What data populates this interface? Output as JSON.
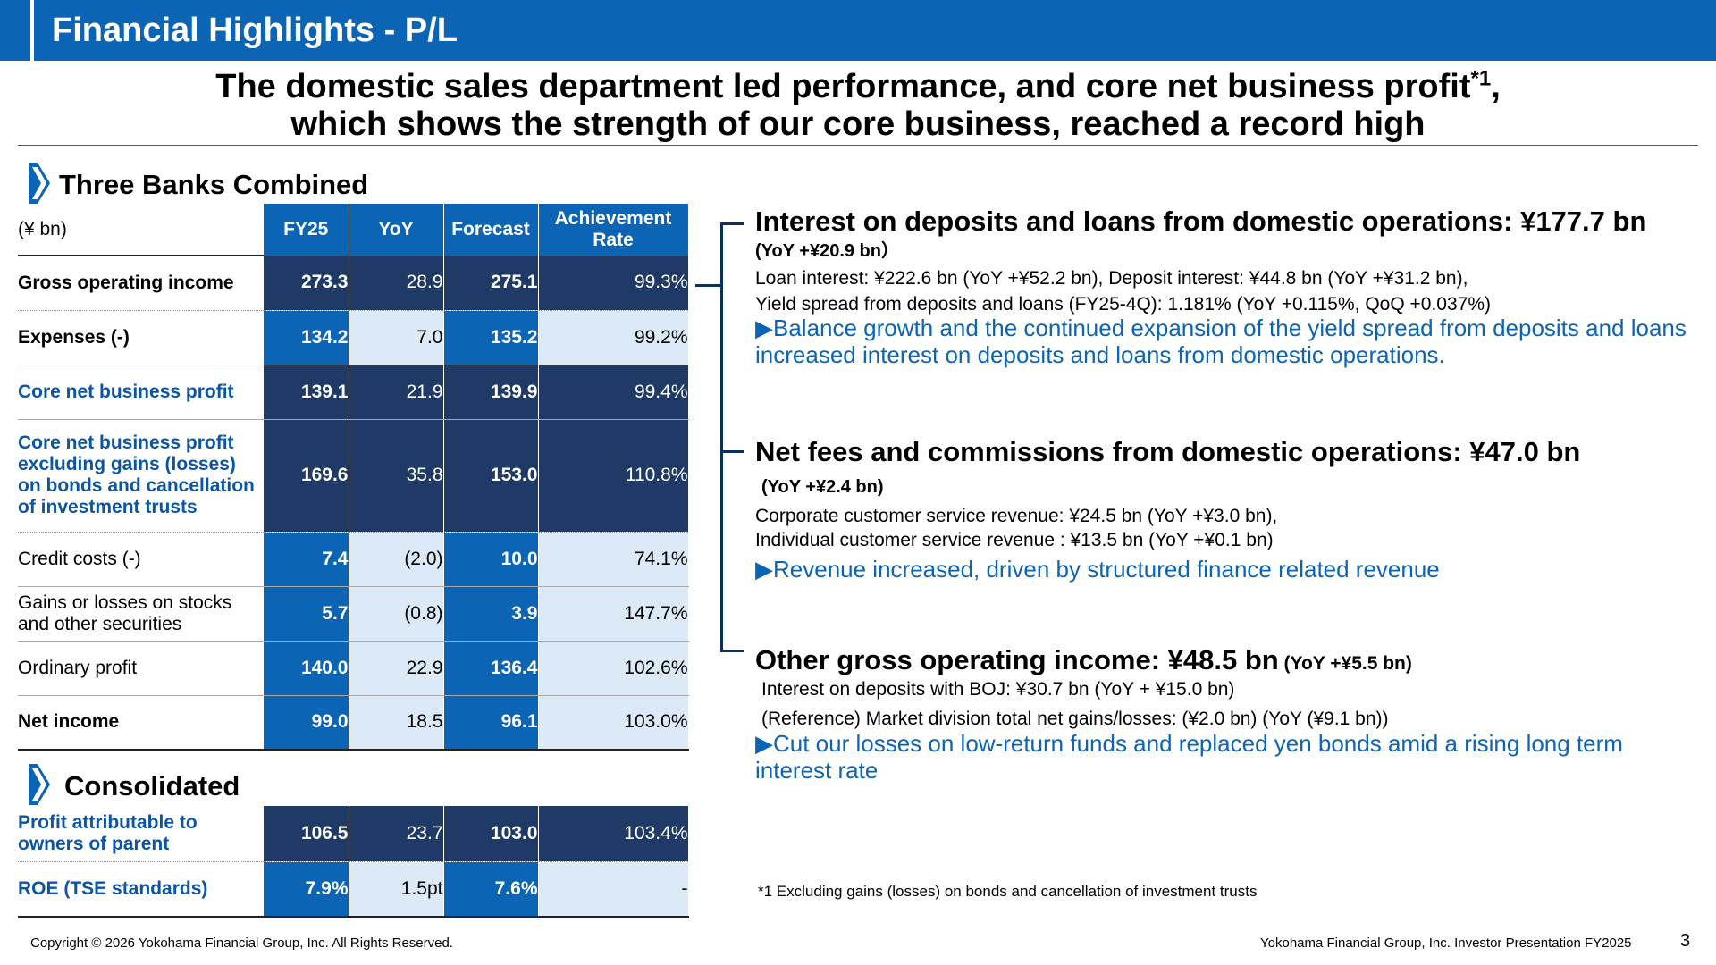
{
  "header": {
    "title": "Financial Highlights - P/L"
  },
  "headline": {
    "line1": "The domestic sales department led performance, and core net business profit",
    "line1_sup": "*1",
    "line1_end": ",",
    "line2": "which shows the strength of our core business, reached a record high"
  },
  "three_banks": {
    "title": "Three Banks Combined",
    "unit": "(¥ bn)",
    "columns": [
      "FY25",
      "YoY",
      "Forecast",
      "Achievement Rate"
    ],
    "rows": [
      {
        "label": "Gross operating income",
        "fy25": "273.3",
        "yoy": "28.9",
        "forecast": "275.1",
        "rate": "99.3%"
      },
      {
        "label": "Expenses (-)",
        "fy25": "134.2",
        "yoy": "7.0",
        "forecast": "135.2",
        "rate": "99.2%"
      },
      {
        "label": "Core net business profit",
        "fy25": "139.1",
        "yoy": "21.9",
        "forecast": "139.9",
        "rate": "99.4%"
      },
      {
        "label": "Core net business profit excluding gains (losses) on bonds and cancellation of investment trusts",
        "fy25": "169.6",
        "yoy": "35.8",
        "forecast": "153.0",
        "rate": "110.8%"
      },
      {
        "label": "Credit costs (-)",
        "fy25": "7.4",
        "yoy": "(2.0)",
        "forecast": "10.0",
        "rate": "74.1%"
      },
      {
        "label": "Gains or losses on stocks and other securities",
        "fy25": "5.7",
        "yoy": "(0.8)",
        "forecast": "3.9",
        "rate": "147.7%"
      },
      {
        "label": "Ordinary profit",
        "fy25": "140.0",
        "yoy": "22.9",
        "forecast": "136.4",
        "rate": "102.6%"
      },
      {
        "label": "Net income",
        "fy25": "99.0",
        "yoy": "18.5",
        "forecast": "96.1",
        "rate": "103.0%"
      }
    ]
  },
  "consolidated": {
    "title": "Consolidated",
    "rows": [
      {
        "label": "Profit attributable to owners of parent",
        "fy25": "106.5",
        "yoy": "23.7",
        "forecast": "103.0",
        "rate": "103.4%"
      },
      {
        "label": "ROE (TSE standards)",
        "fy25": "7.9%",
        "yoy": "1.5pt",
        "forecast": "7.6%",
        "rate": "-"
      }
    ]
  },
  "right": {
    "s1": {
      "heading": "Interest on deposits and loans from domestic operations: ¥177.7 bn",
      "sub": "(YoY +¥20.9 bn）",
      "body1": "Loan interest: ¥222.6 bn (YoY +¥52.2 bn), Deposit interest: ¥44.8 bn (YoY +¥31.2 bn),",
      "body2": "Yield spread from deposits and loans (FY25-4Q): 1.181% (YoY +0.115%, QoQ +0.037%)",
      "highlight": "▶Balance growth and the continued expansion of the yield spread from deposits and loans increased interest on deposits and loans from domestic operations."
    },
    "s2": {
      "heading": "Net fees and commissions from domestic operations: ¥47.0 bn",
      "sub": "(YoY +¥2.4 bn)",
      "body1": "Corporate customer service revenue: ¥24.5 bn (YoY +¥3.0 bn),",
      "body2": "Individual customer service revenue : ¥13.5 bn (YoY +¥0.1 bn)",
      "highlight": "▶Revenue increased, driven by structured finance related revenue"
    },
    "s3": {
      "heading": "Other gross operating income: ¥48.5 bn",
      "heading_small": " (YoY +¥5.5 bn)",
      "body1": "Interest on deposits with BOJ: ¥30.7 bn  (YoY + ¥15.0 bn)",
      "body2": "(Reference) Market division total net gains/losses: (¥2.0 bn) (YoY (¥9.1 bn))",
      "highlight": "▶Cut our losses on low-return funds and replaced yen bonds amid a rising long term interest rate"
    }
  },
  "footnote": "*1 Excluding gains (losses) on bonds and cancellation of investment trusts",
  "footer": {
    "copyright": "Copyright © 2026 Yokohama Financial Group, Inc. All Rights Reserved.",
    "right": "Yokohama Financial Group, Inc. Investor Presentation FY2025",
    "page": "3"
  },
  "colors": {
    "header": "#0c64b5",
    "dark_cell": "#1f3a66",
    "light_cell": "#dce9f6",
    "highlight_text": "#0c64b5"
  }
}
